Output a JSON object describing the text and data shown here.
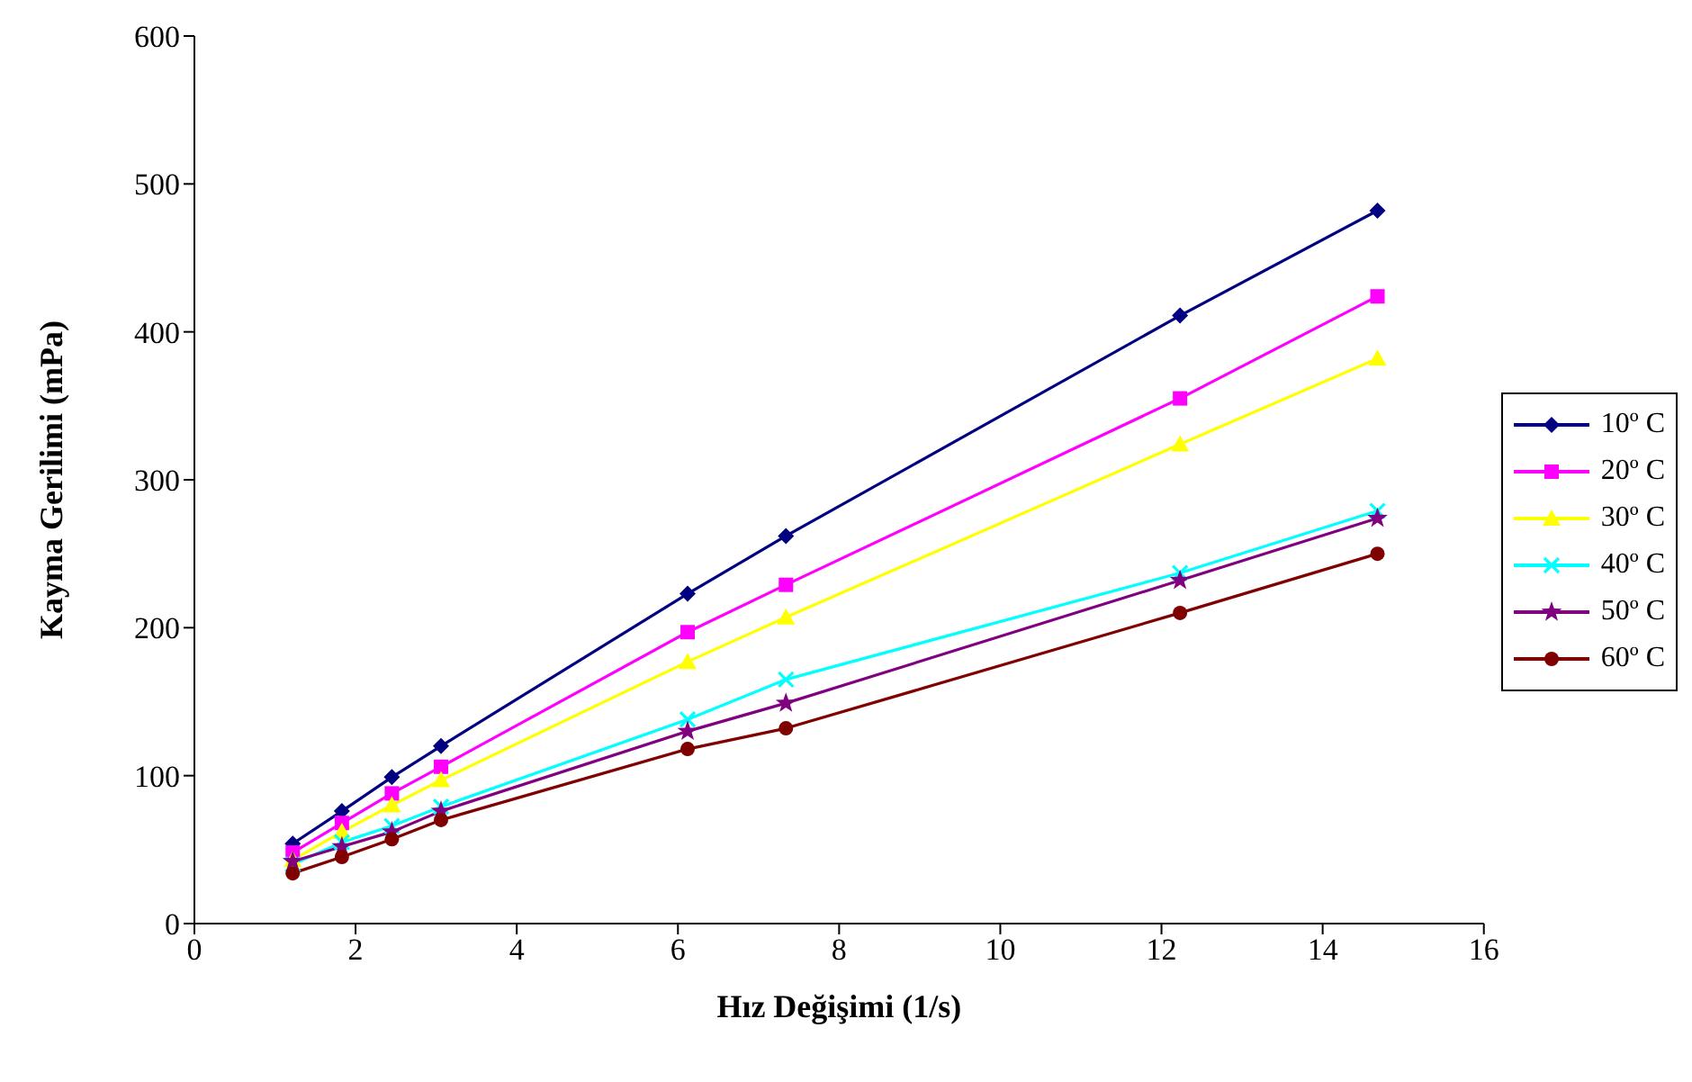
{
  "chart_data": {
    "type": "line",
    "xlabel": "Hız Değişimi (1/s)",
    "ylabel": "Kayma Gerilimi (mPa)",
    "x": [
      1.22,
      1.83,
      2.45,
      3.06,
      6.12,
      7.34,
      12.23,
      14.68
    ],
    "xlim": [
      0,
      16
    ],
    "xticks": [
      0,
      2,
      4,
      6,
      8,
      10,
      12,
      14,
      16
    ],
    "ylim": [
      0,
      600
    ],
    "yticks": [
      0,
      100,
      200,
      300,
      400,
      500,
      600
    ],
    "grid": false,
    "legend": "right",
    "series": [
      {
        "name": "10º C",
        "color": "#000080",
        "marker": "diamond",
        "values": [
          54,
          76,
          99,
          120,
          223,
          262,
          411,
          482
        ]
      },
      {
        "name": "20º C",
        "color": "#ff00ff",
        "marker": "square",
        "values": [
          48,
          68,
          88,
          106,
          197,
          229,
          355,
          424
        ]
      },
      {
        "name": "30º C",
        "color": "#ffff00",
        "marker": "triangle",
        "values": [
          43,
          62,
          80,
          97,
          177,
          207,
          324,
          382
        ]
      },
      {
        "name": "40º C",
        "color": "#00ffff",
        "marker": "cross",
        "values": [
          40,
          55,
          66,
          79,
          138,
          165,
          237,
          279
        ]
      },
      {
        "name": "50º C",
        "color": "#800080",
        "marker": "star",
        "values": [
          42,
          52,
          62,
          76,
          130,
          149,
          232,
          274
        ]
      },
      {
        "name": "60º C",
        "color": "#800000",
        "marker": "circle",
        "values": [
          34,
          45,
          57,
          70,
          118,
          132,
          210,
          250
        ]
      }
    ]
  }
}
